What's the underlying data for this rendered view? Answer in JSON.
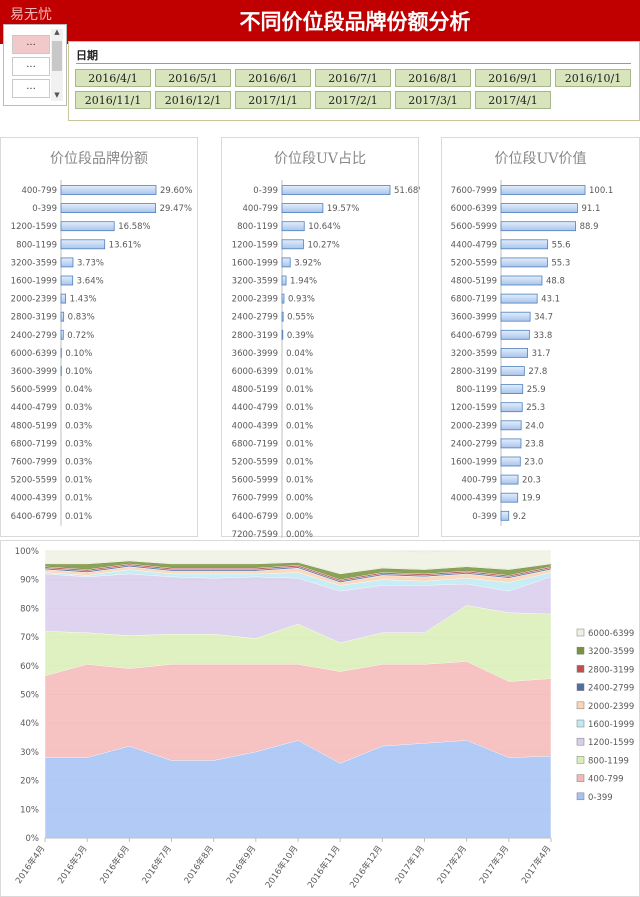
{
  "header": {
    "title": "不同价位段品牌份额分析",
    "brand": "易无忧"
  },
  "selector": {
    "items": [
      "...",
      "...",
      "..."
    ]
  },
  "date_filter": {
    "label": "日期",
    "dates": [
      "2016/4/1",
      "2016/5/1",
      "2016/6/1",
      "2016/7/1",
      "2016/8/1",
      "2016/9/1",
      "2016/10/1",
      "2016/11/1",
      "2016/12/1",
      "2017/1/1",
      "2017/2/1",
      "2017/3/1",
      "2017/4/1"
    ]
  },
  "chart_data": [
    {
      "type": "bar",
      "title": "价位段品牌份额",
      "categories": [
        "400-799",
        "0-399",
        "1200-1599",
        "800-1199",
        "3200-3599",
        "1600-1999",
        "2000-2399",
        "2800-3199",
        "2400-2799",
        "6000-6399",
        "3600-3999",
        "5600-5999",
        "4400-4799",
        "4800-5199",
        "6800-7199",
        "7600-7999",
        "5200-5599",
        "4000-4399",
        "6400-6799"
      ],
      "values": [
        29.6,
        29.47,
        16.58,
        13.61,
        3.73,
        3.64,
        1.43,
        0.83,
        0.72,
        0.1,
        0.1,
        0.04,
        0.03,
        0.03,
        0.03,
        0.03,
        0.01,
        0.01,
        0.01
      ],
      "labels": [
        "29.60%",
        "29.47%",
        "16.58%",
        "13.61%",
        "3.73%",
        "3.64%",
        "1.43%",
        "0.83%",
        "0.72%",
        "0.10%",
        "0.10%",
        "0.04%",
        "0.03%",
        "0.03%",
        "0.03%",
        "0.03%",
        "0.01%",
        "0.01%",
        "0.01%"
      ]
    },
    {
      "type": "bar",
      "title": "价位段UV占比",
      "categories": [
        "0-399",
        "400-799",
        "800-1199",
        "1200-1599",
        "1600-1999",
        "3200-3599",
        "2000-2399",
        "2400-2799",
        "2800-3199",
        "3600-3999",
        "6000-6399",
        "4800-5199",
        "4400-4799",
        "4000-4399",
        "6800-7199",
        "5200-5599",
        "5600-5999",
        "7600-7999",
        "6400-6799",
        "7200-7599"
      ],
      "values": [
        51.68,
        19.57,
        10.64,
        10.27,
        3.92,
        1.94,
        0.93,
        0.55,
        0.39,
        0.04,
        0.01,
        0.01,
        0.01,
        0.01,
        0.01,
        0.01,
        0.01,
        0.0,
        0.0,
        0.0
      ],
      "labels": [
        "51.68%",
        "19.57%",
        "10.64%",
        "10.27%",
        "3.92%",
        "1.94%",
        "0.93%",
        "0.55%",
        "0.39%",
        "0.04%",
        "0.01%",
        "0.01%",
        "0.01%",
        "0.01%",
        "0.01%",
        "0.01%",
        "0.01%",
        "0.00%",
        "0.00%",
        "0.00%"
      ]
    },
    {
      "type": "bar",
      "title": "价位段UV价值",
      "categories": [
        "7600-7999",
        "6000-6399",
        "5600-5999",
        "4400-4799",
        "5200-5599",
        "4800-5199",
        "6800-7199",
        "3600-3999",
        "6400-6799",
        "3200-3599",
        "2800-3199",
        "800-1199",
        "1200-1599",
        "2000-2399",
        "2400-2799",
        "1600-1999",
        "400-799",
        "4000-4399",
        "0-399"
      ],
      "values": [
        100.1,
        91.1,
        88.9,
        55.6,
        55.3,
        48.8,
        43.1,
        34.7,
        33.8,
        31.7,
        27.8,
        25.9,
        25.3,
        24.0,
        23.8,
        23.0,
        20.3,
        19.9,
        9.2
      ],
      "labels": [
        "100.1",
        "91.1",
        "88.9",
        "55.6",
        "55.3",
        "48.8",
        "43.1",
        "34.7",
        "33.8",
        "31.7",
        "27.8",
        "25.9",
        "25.3",
        "24.0",
        "23.8",
        "23.0",
        "20.3",
        "19.9",
        "9.2"
      ]
    },
    {
      "type": "area",
      "stacked": true,
      "percent": true,
      "x": [
        "2016年4月",
        "2016年5月",
        "2016年6月",
        "2016年7月",
        "2016年8月",
        "2016年9月",
        "2016年10月",
        "2016年11月",
        "2016年12月",
        "2017年1月",
        "2017年2月",
        "2017年3月",
        "2017年4月"
      ],
      "yticks": [
        "0%",
        "10%",
        "20%",
        "30%",
        "40%",
        "50%",
        "60%",
        "70%",
        "80%",
        "90%",
        "100%"
      ],
      "ylim": [
        0,
        100
      ],
      "legend_position": "right",
      "series": [
        {
          "name": "0-399",
          "values": [
            28,
            28,
            32,
            27,
            27,
            30,
            34,
            26,
            32,
            33,
            34,
            28,
            28.5
          ],
          "color": "#a4c2f4"
        },
        {
          "name": "400-799",
          "values": [
            28.5,
            32.5,
            27,
            33.5,
            33.5,
            30.5,
            26.5,
            32,
            28.5,
            27.5,
            27.5,
            26.5,
            27
          ],
          "color": "#f4b7b7"
        },
        {
          "name": "800-1199",
          "values": [
            15.5,
            11,
            11.5,
            10.5,
            10.5,
            9,
            14,
            10,
            11,
            11,
            19.5,
            24,
            22.5
          ],
          "color": "#d9efb5"
        },
        {
          "name": "1200-1599",
          "values": [
            20,
            19.5,
            21.5,
            20,
            19.5,
            21.5,
            16,
            18,
            16.5,
            16.5,
            7.5,
            7.5,
            13
          ],
          "color": "#d9cdec"
        },
        {
          "name": "1600-1999",
          "values": [
            0.5,
            0.5,
            1.5,
            1,
            1.5,
            1,
            2,
            2,
            2,
            1.5,
            2,
            3,
            1.5
          ],
          "color": "#bfeaf2"
        },
        {
          "name": "2000-2399",
          "values": [
            1,
            1,
            1,
            1,
            1,
            1,
            1.5,
            1,
            1.5,
            1.5,
            1.5,
            1.5,
            1
          ],
          "color": "#fbd4b4"
        },
        {
          "name": "2400-2799",
          "values": [
            0.5,
            0.5,
            0.5,
            0.5,
            0.5,
            0.5,
            0.5,
            0.5,
            0.5,
            0.5,
            0.5,
            0.5,
            0.5
          ],
          "color": "#4f6fa0"
        },
        {
          "name": "2800-3199",
          "values": [
            0.5,
            0.5,
            0.5,
            0.5,
            0.5,
            0.5,
            0.5,
            0.5,
            0.5,
            0.5,
            0.5,
            0.5,
            0.5
          ],
          "color": "#c0504d"
        },
        {
          "name": "3200-3599",
          "values": [
            1,
            2,
            1,
            1.5,
            1.5,
            1.5,
            1,
            2,
            1.5,
            1.5,
            1.5,
            2,
            1
          ],
          "color": "#77933c"
        },
        {
          "name": "6000-6399",
          "values": [
            4.5,
            4.5,
            3.5,
            4.5,
            4.5,
            4.5,
            4,
            8,
            6,
            6,
            5.5,
            6.5,
            4.5
          ],
          "color": "#eef1e2"
        }
      ]
    }
  ]
}
